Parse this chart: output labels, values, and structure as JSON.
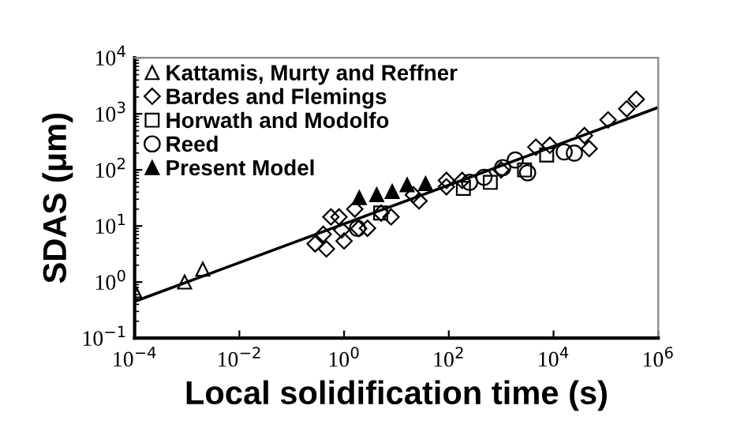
{
  "chart_data": {
    "type": "scatter",
    "xlabel": "Local solidification time (s)",
    "ylabel": "SDAS (μm)",
    "log": "xy",
    "legend": "top left",
    "grid": false,
    "xlim": [
      0.0001,
      1000000
    ],
    "ylim": [
      0.1,
      10000
    ],
    "xticks": [
      {
        "value": 0.0001,
        "label": "10$^{−4}$"
      },
      {
        "value": 0.01,
        "label": "10$^{−2}$"
      },
      {
        "value": 1,
        "label": "10$^{0}$"
      },
      {
        "value": 100,
        "label": "10$^{2}$"
      },
      {
        "value": 10000,
        "label": "10$^{4}$"
      },
      {
        "value": 1000000,
        "label": "10$^{6}$"
      }
    ],
    "yticks": [
      {
        "value": 0.1,
        "label": "10$^{−1}$"
      },
      {
        "value": 1,
        "label": "10$^{0}$"
      },
      {
        "value": 10,
        "label": "10$^{1}$"
      },
      {
        "value": 100,
        "label": "10$^{2}$"
      },
      {
        "value": 1000,
        "label": "10$^{3}$"
      },
      {
        "value": 10000,
        "label": "10$^{4}$"
      }
    ],
    "series": [
      {
        "name": "Kattamis, Murty and Reffner",
        "color": "#000000",
        "marker": "triangle",
        "x": [
          0.0001,
          0.0009,
          0.002
        ],
        "values": [
          0.7,
          1.0,
          1.7
        ]
      },
      {
        "name": "Bardes and Flemings",
        "color": "#000000",
        "marker": "diamond",
        "x": [
          0.28,
          0.46,
          0.4,
          0.56,
          0.8,
          1.0,
          0.9,
          1.6,
          1.9,
          2.8,
          5.1,
          7.9,
          21,
          27,
          90,
          90,
          180,
          1000,
          4600,
          8500,
          39000,
          48000,
          110000,
          250000,
          380000
        ],
        "values": [
          4.8,
          3.9,
          7.1,
          14.5,
          14.5,
          5.4,
          8.5,
          20,
          9,
          9.1,
          17,
          14.5,
          36,
          28,
          50,
          65,
          65,
          100,
          255,
          275,
          410,
          240,
          780,
          1230,
          1820
        ]
      },
      {
        "name": "Horwath and Modolfo",
        "color": "#000000",
        "marker": "square",
        "x": [
          5,
          190,
          620,
          2800,
          7400
        ],
        "values": [
          17,
          47,
          60,
          100,
          185
        ]
      },
      {
        "name": "Reed",
        "color": "#000000",
        "marker": "circle",
        "x": [
          1.8,
          250,
          470,
          1070,
          1860,
          3200,
          16000,
          25000
        ],
        "values": [
          9.1,
          60,
          74,
          110,
          150,
          89,
          210,
          200
        ]
      },
      {
        "name": "Present Model",
        "color": "#000000",
        "marker": "triangle",
        "x": [
          1.95,
          4.2,
          8.3,
          16,
          36
        ],
        "values": [
          32,
          36,
          41,
          54,
          57
        ]
      },
      {
        "type": "line",
        "color": "#000000",
        "line_style": "solid",
        "x": [
          0.0001,
          1000000
        ],
        "values": [
          0.45,
          1300
        ]
      }
    ]
  }
}
